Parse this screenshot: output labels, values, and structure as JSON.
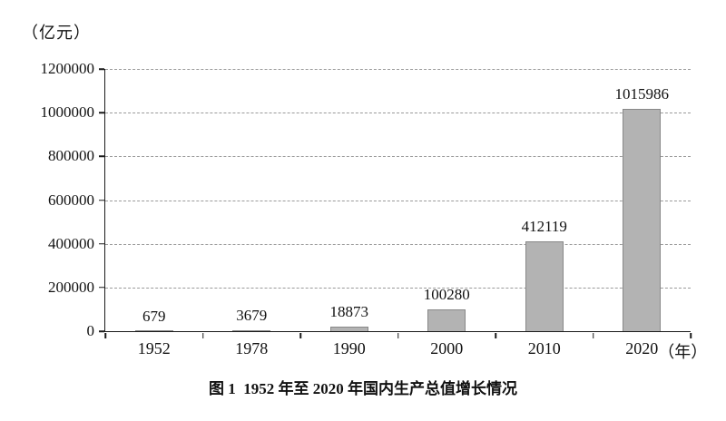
{
  "unit_label": "（亿元）",
  "caption": "图 1  1952 年至 2020 年国内生产总值增长情况",
  "chart_data": {
    "type": "bar",
    "title": "图 1  1952 年至 2020 年国内生产总值增长情况",
    "categories": [
      "1952",
      "1978",
      "1990",
      "2000",
      "2010",
      "2020"
    ],
    "values": [
      679,
      3679,
      18873,
      100280,
      412119,
      1015986
    ],
    "data_labels": [
      "679",
      "3679",
      "18873",
      "100280",
      "412119",
      "1015986"
    ],
    "xlabel": "年",
    "x_axis_suffix": "（年）",
    "ylabel": "亿元",
    "ylim": [
      0,
      1200000
    ],
    "yticks": [
      0,
      200000,
      400000,
      600000,
      800000,
      1000000,
      1200000
    ],
    "ytick_labels": [
      "0",
      "200000",
      "400000",
      "600000",
      "800000",
      "1000000",
      "1200000"
    ],
    "grid": "dashed-horizontal",
    "legend": "none",
    "bar_color": "#b3b3b3",
    "bar_border_color": "#888888",
    "axis_color": "#1a1a1a"
  }
}
